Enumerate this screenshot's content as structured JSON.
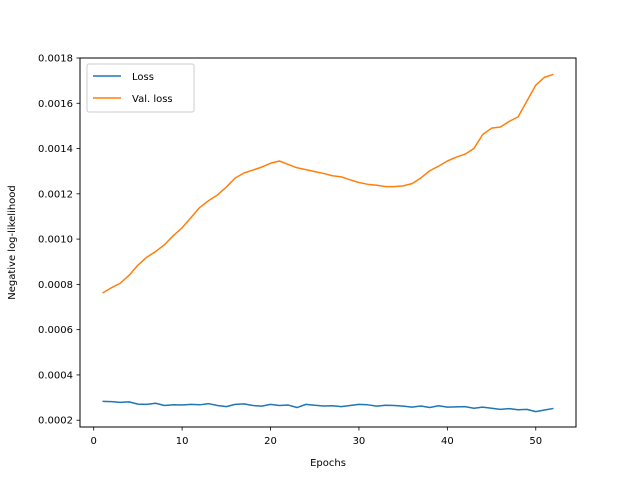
{
  "chart_data": {
    "type": "line",
    "title": "",
    "xlabel": "Epochs",
    "ylabel": "Negative log-likelihood",
    "xlim": [
      -1.55,
      54.55
    ],
    "ylim": [
      0.00017,
      0.0018
    ],
    "xticks": [
      0,
      10,
      20,
      30,
      40,
      50
    ],
    "yticks": [
      0.0002,
      0.0004,
      0.0006,
      0.0008,
      0.001,
      0.0012,
      0.0014,
      0.0016,
      0.0018
    ],
    "ytick_labels": [
      "0.0002",
      "0.0004",
      "0.0006",
      "0.0008",
      "0.0010",
      "0.0012",
      "0.0014",
      "0.0016",
      "0.0018"
    ],
    "grid": false,
    "legend": "top-left",
    "x": [
      1,
      2,
      3,
      4,
      5,
      6,
      7,
      8,
      9,
      10,
      11,
      12,
      13,
      14,
      15,
      16,
      17,
      18,
      19,
      20,
      21,
      22,
      23,
      24,
      25,
      26,
      27,
      28,
      29,
      30,
      31,
      32,
      33,
      34,
      35,
      36,
      37,
      38,
      39,
      40,
      41,
      42,
      43,
      44,
      45,
      46,
      47,
      48,
      49,
      50,
      51,
      52
    ],
    "series": [
      {
        "name": "Loss",
        "color": "#1f77b4",
        "values": [
          0.000283,
          0.000282,
          0.000279,
          0.000281,
          0.000271,
          0.00027,
          0.000275,
          0.000265,
          0.000268,
          0.000267,
          0.00027,
          0.000268,
          0.000273,
          0.000265,
          0.00026,
          0.00027,
          0.000272,
          0.000265,
          0.000262,
          0.00027,
          0.000265,
          0.000267,
          0.000256,
          0.00027,
          0.000266,
          0.000263,
          0.000264,
          0.00026,
          0.000265,
          0.00027,
          0.000268,
          0.000262,
          0.000266,
          0.000265,
          0.000262,
          0.000258,
          0.000263,
          0.000256,
          0.000264,
          0.000258,
          0.000259,
          0.00026,
          0.000253,
          0.000258,
          0.000253,
          0.000248,
          0.000251,
          0.000246,
          0.000248,
          0.000238,
          0.000245,
          0.000252
        ]
      },
      {
        "name": "Val. loss",
        "color": "#ff7f0e",
        "values": [
          0.000762,
          0.000785,
          0.000805,
          0.00084,
          0.000885,
          0.00092,
          0.000945,
          0.000975,
          0.001015,
          0.00105,
          0.001095,
          0.00114,
          0.00117,
          0.001195,
          0.00123,
          0.00127,
          0.001292,
          0.001305,
          0.001318,
          0.001335,
          0.001345,
          0.00133,
          0.001315,
          0.001307,
          0.001298,
          0.00129,
          0.00128,
          0.001275,
          0.001262,
          0.00125,
          0.001242,
          0.001238,
          0.001232,
          0.001232,
          0.001235,
          0.001245,
          0.00127,
          0.001302,
          0.001322,
          0.001345,
          0.001362,
          0.001375,
          0.0014,
          0.001462,
          0.00149,
          0.001495,
          0.00152,
          0.00154,
          0.00161,
          0.00168,
          0.001715,
          0.001728
        ]
      }
    ]
  }
}
